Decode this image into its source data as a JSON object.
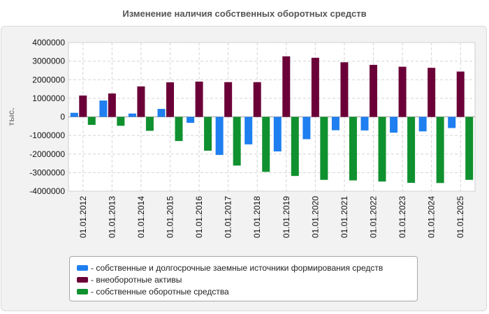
{
  "title": "Изменение наличия собственных оборотных средств",
  "chart_data": {
    "type": "bar",
    "title": "Изменение наличия собственных оборотных средств",
    "xlabel": "",
    "ylabel": "тыс.",
    "ylim": [
      -4000000,
      4000000
    ],
    "yticks": [
      4000000,
      3000000,
      2000000,
      1000000,
      0,
      -1000000,
      -2000000,
      -3000000,
      -4000000
    ],
    "ytick_labels": [
      "4000000",
      "3000000",
      "2000000",
      "1000000",
      "0",
      "-1000000",
      "-2000000",
      "-3000000",
      "-4000000"
    ],
    "grid": true,
    "legend_position": "bottom",
    "categories": [
      "01.01.2012",
      "01.01.2013",
      "01.01.2014",
      "01.01.2015",
      "01.01.2016",
      "01.01.2017",
      "01.01.2018",
      "01.01.2019",
      "01.01.2020",
      "01.01.2021",
      "01.01.2022",
      "01.01.2023",
      "01.01.2024",
      "01.01.2025"
    ],
    "series": [
      {
        "name": "- собственные и долгосрочные заемные источники формирования средств",
        "color": "#1f7ff0",
        "values": [
          220000,
          880000,
          180000,
          430000,
          -320000,
          -2050000,
          -1480000,
          -1860000,
          -1200000,
          -720000,
          -730000,
          -850000,
          -780000,
          -600000
        ]
      },
      {
        "name": "- внеоборотные активы",
        "color": "#6b0038",
        "values": [
          1150000,
          1260000,
          1640000,
          1860000,
          1900000,
          1870000,
          1870000,
          3260000,
          3180000,
          2940000,
          2800000,
          2700000,
          2640000,
          2440000
        ]
      },
      {
        "name": "- собственные оборотные средства",
        "color": "#10912f",
        "values": [
          -430000,
          -480000,
          -750000,
          -1300000,
          -1820000,
          -2620000,
          -2960000,
          -3180000,
          -3390000,
          -3420000,
          -3480000,
          -3550000,
          -3560000,
          -3390000
        ]
      }
    ]
  }
}
